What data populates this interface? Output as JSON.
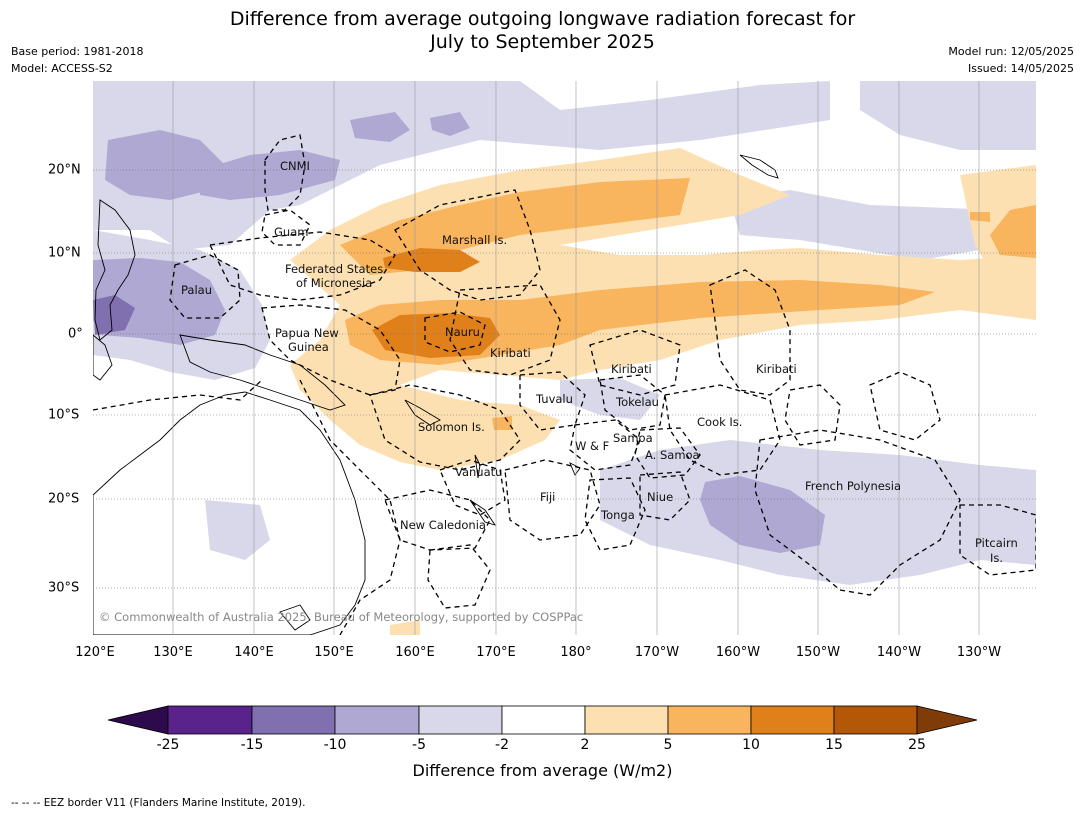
{
  "title_line1": "Difference from average outgoing longwave radiation forecast for",
  "title_line2": "July to September 2025",
  "meta_left": {
    "base_period": "Base period: 1981-2018",
    "model": "Model: ACCESS-S2"
  },
  "meta_right": {
    "model_run": "Model run: 12/05/2025",
    "issued": "Issued: 14/05/2025"
  },
  "lon_labels": [
    "120°E",
    "130°E",
    "140°E",
    "150°E",
    "160°E",
    "170°E",
    "180°",
    "170°W",
    "160°W",
    "150°W",
    "140°W",
    "130°W"
  ],
  "lat_labels": [
    "20°N",
    "10°N",
    "0°",
    "10°S",
    "20°S",
    "30°S"
  ],
  "places": {
    "cnmi": "CNMI",
    "guam": "Guam",
    "marshall": "Marshall Is.",
    "fsm1": "Federated States",
    "fsm2": "of Micronesia",
    "palau": "Palau",
    "png1": "Papua New",
    "png2": "Guinea",
    "nauru": "Nauru",
    "kiribati_w": "Kiribati",
    "kiribati_c": "Kiribati",
    "kiribati_e": "Kiribati",
    "tuvalu": "Tuvalu",
    "tokelau": "Tokelau",
    "cook": "Cook Is.",
    "solomon": "Solomon Is.",
    "samoa": "Samoa",
    "wf": "W & F",
    "asamoa": "A. Samoa",
    "vanuatu": "Vanuatu",
    "fiji": "Fiji",
    "niue": "Niue",
    "tonga": "Tonga",
    "newcal": "New Caledonia",
    "frpoly": "French Polynesia",
    "pitcairn1": "Pitcairn",
    "pitcairn2": "Is."
  },
  "copyright": "© Commonwealth of Australia 2025, Bureau of Meteorology, supported by COSPPac",
  "colorbar": {
    "title": "Difference from average (W/m2)",
    "ticks": [
      "-25",
      "-15",
      "-10",
      "-5",
      "-2",
      "2",
      "5",
      "10",
      "15",
      "25"
    ],
    "colors": {
      "lt_neg25": "#2d0a4b",
      "neg25_neg15": "#5a238c",
      "neg15_neg10": "#8070b0",
      "neg10_neg5": "#aea8d2",
      "neg5_neg2": "#d8d8ea",
      "neg2_2": "#ffffff",
      "p2_5": "#fde0b2",
      "p5_10": "#f9b45e",
      "p10_15": "#e0801a",
      "p15_25": "#b35806",
      "gt_25": "#7f3b08"
    }
  },
  "footer": "--  --  -- EEZ border V11 (Flanders Marine Institute, 2019)."
}
